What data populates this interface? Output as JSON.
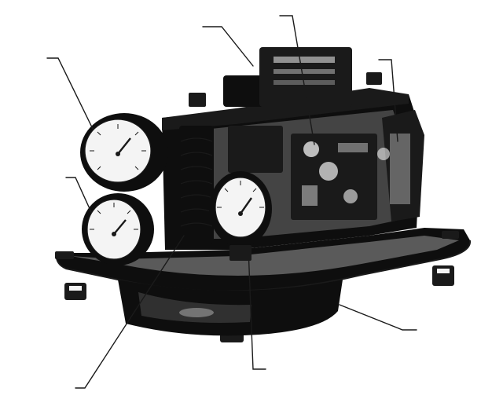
{
  "figure": {
    "subject": "pneumatic-positioner-illustration",
    "style": "black-and-white-photocopy",
    "labels_printed": false
  },
  "colors": {
    "background": "#ffffff",
    "ink": "#1a1a1a",
    "gauge_face": "#f4f4f4"
  },
  "gauges": [
    {
      "name": "upper-left-pressure-gauge"
    },
    {
      "name": "lower-left-pressure-gauge"
    },
    {
      "name": "front-center-pressure-gauge"
    }
  ],
  "leader_lines": [
    {
      "name": "leader-top-center"
    },
    {
      "name": "leader-top-right-inner"
    },
    {
      "name": "leader-top-right-outer"
    },
    {
      "name": "leader-left-upper"
    },
    {
      "name": "leader-left-lower"
    },
    {
      "name": "leader-bottom-left"
    },
    {
      "name": "leader-bottom-center"
    },
    {
      "name": "leader-right-lower"
    }
  ]
}
